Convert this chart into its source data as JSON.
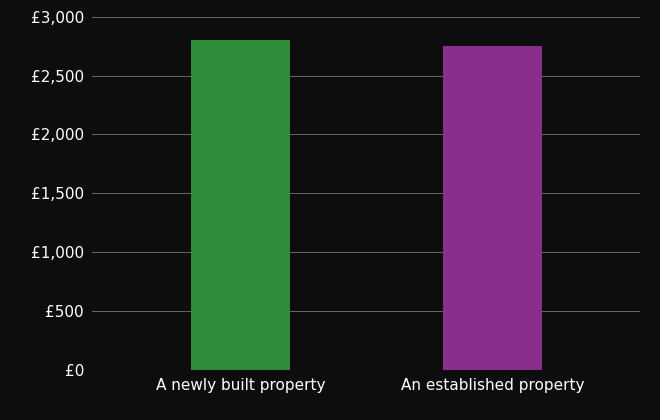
{
  "categories": [
    "A newly built property",
    "An established property"
  ],
  "values": [
    2800,
    2750
  ],
  "bar_colors": [
    "#2e8b3a",
    "#8b2d8b"
  ],
  "background_color": "#0d0d0d",
  "text_color": "#ffffff",
  "grid_color": "#666666",
  "ylim": [
    0,
    3000
  ],
  "ytick_step": 500,
  "bar_width": 0.18,
  "figsize": [
    6.6,
    4.2
  ],
  "dpi": 100,
  "xlabel_fontsize": 11,
  "ylabel_fontsize": 11
}
